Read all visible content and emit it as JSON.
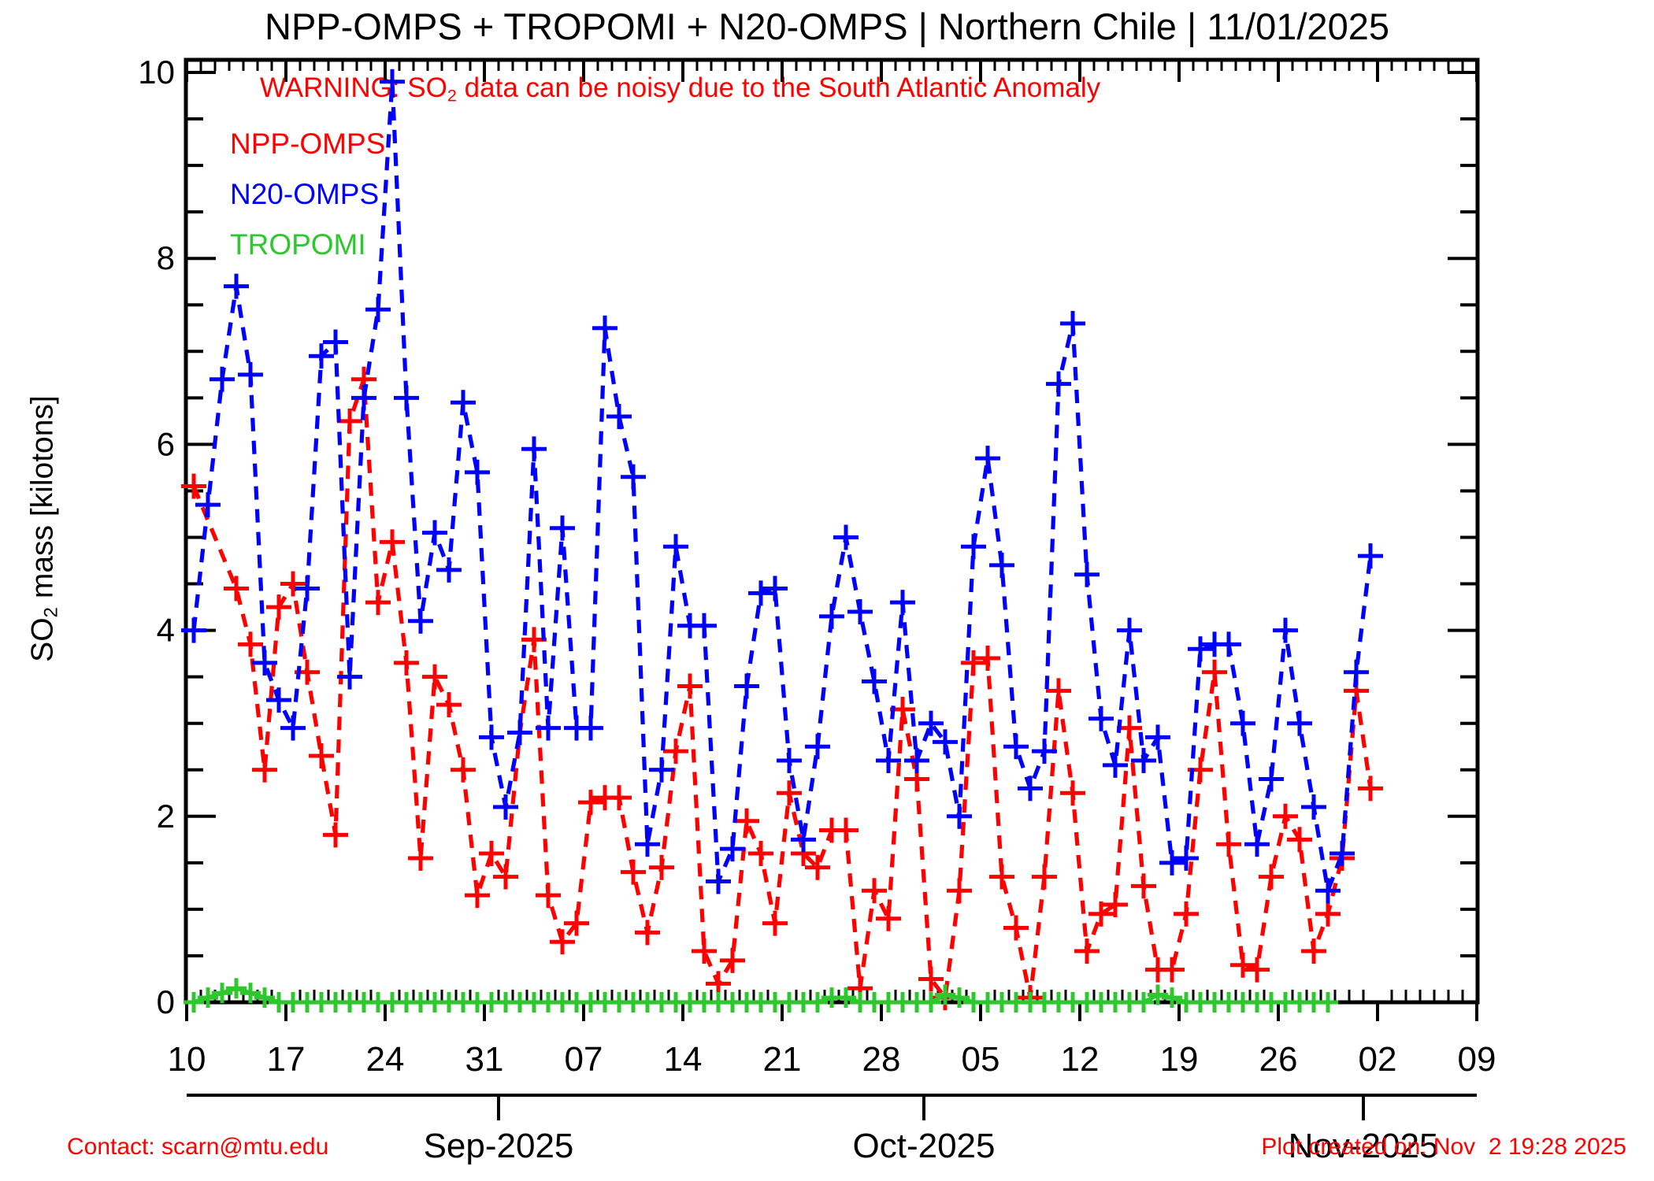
{
  "title": "NPP-OMPS + TROPOMI + N20-OMPS | Northern Chile | 11/01/2025",
  "warning": {
    "pre": "WARNING: SO",
    "sub": "2",
    "post": " data can be noisy due to the South Atlantic Anomaly"
  },
  "legend": {
    "npp_label": "NPP-OMPS",
    "n20_label": "N20-OMPS",
    "tropomi_label": "TROPOMI"
  },
  "y_axis_label": {
    "pre": "SO",
    "sub": "2",
    "post": " mass [kilotons]"
  },
  "footer": {
    "contact": "Contact: scarn@mtu.edu",
    "created": "Plot created on: Nov  2 19:28 2025"
  },
  "colors": {
    "red": "#ff0000",
    "blue": "#0000ff",
    "green": "#2dc82d",
    "black": "#000000"
  },
  "chart_data": {
    "type": "line",
    "title": "NPP-OMPS + TROPOMI + N20-OMPS | Northern Chile | 11/01/2025",
    "ylabel": "SO2 mass [kilotons]",
    "ylim": [
      0,
      10
    ],
    "y_tick_labels": [
      "0",
      "2",
      "4",
      "6",
      "8",
      "10"
    ],
    "y_major_step": 2,
    "y_minor_step": 0.5,
    "x_axis": {
      "start_date": "2025-08-10",
      "end_date": "2025-11-09",
      "week_tick_labels": [
        "10",
        "17",
        "24",
        "31",
        "07",
        "14",
        "21",
        "28",
        "05",
        "12",
        "19",
        "26",
        "02",
        "09"
      ],
      "month_ticks": [
        {
          "label": "Sep-2025",
          "date": "09-01"
        },
        {
          "label": "Oct-2025",
          "date": "10-01"
        },
        {
          "label": "Nov-2025",
          "date": "11-01"
        }
      ]
    },
    "legend_position": "upper-left-inside",
    "grid": false,
    "series": [
      {
        "name": "NPP-OMPS",
        "color": "#ff0000",
        "line_style": "dashed",
        "marker": "+",
        "points": [
          [
            "08-10",
            5.55
          ],
          [
            "08-13",
            4.45
          ],
          [
            "08-14",
            3.85
          ],
          [
            "08-15",
            2.5
          ],
          [
            "08-16",
            4.25
          ],
          [
            "08-17",
            4.5
          ],
          [
            "08-18",
            3.55
          ],
          [
            "08-19",
            2.65
          ],
          [
            "08-20",
            1.8
          ],
          [
            "08-21",
            6.25
          ],
          [
            "08-22",
            6.7
          ],
          [
            "08-23",
            4.3
          ],
          [
            "08-24",
            4.95
          ],
          [
            "08-25",
            3.65
          ],
          [
            "08-26",
            1.55
          ],
          [
            "08-27",
            3.5
          ],
          [
            "08-28",
            3.2
          ],
          [
            "08-29",
            2.5
          ],
          [
            "08-30",
            1.15
          ],
          [
            "08-31",
            1.6
          ],
          [
            "09-01",
            1.35
          ],
          [
            "09-02",
            2.9
          ],
          [
            "09-03",
            3.9
          ],
          [
            "09-04",
            1.15
          ],
          [
            "09-05",
            0.65
          ],
          [
            "09-06",
            0.85
          ],
          [
            "09-07",
            2.15
          ],
          [
            "09-08",
            2.2
          ],
          [
            "09-09",
            2.2
          ],
          [
            "09-10",
            1.4
          ],
          [
            "09-11",
            0.75
          ],
          [
            "09-12",
            1.45
          ],
          [
            "09-13",
            2.7
          ],
          [
            "09-14",
            3.4
          ],
          [
            "09-15",
            0.55
          ],
          [
            "09-16",
            0.2
          ],
          [
            "09-17",
            0.45
          ],
          [
            "09-18",
            1.95
          ],
          [
            "09-19",
            1.6
          ],
          [
            "09-20",
            0.85
          ],
          [
            "09-21",
            2.25
          ],
          [
            "09-22",
            1.6
          ],
          [
            "09-23",
            1.45
          ],
          [
            "09-24",
            1.85
          ],
          [
            "09-25",
            1.85
          ],
          [
            "09-26",
            0.15
          ],
          [
            "09-27",
            1.2
          ],
          [
            "09-28",
            0.9
          ],
          [
            "09-29",
            3.15
          ],
          [
            "09-30",
            2.4
          ],
          [
            "10-01",
            0.25
          ],
          [
            "10-02",
            0.05
          ],
          [
            "10-03",
            1.2
          ],
          [
            "10-04",
            3.65
          ],
          [
            "10-05",
            3.7
          ],
          [
            "10-06",
            1.35
          ],
          [
            "10-07",
            0.8
          ],
          [
            "10-08",
            0.05
          ],
          [
            "10-09",
            1.35
          ],
          [
            "10-10",
            3.35
          ],
          [
            "10-11",
            2.25
          ],
          [
            "10-12",
            0.55
          ],
          [
            "10-13",
            0.95
          ],
          [
            "10-14",
            1.05
          ],
          [
            "10-15",
            2.95
          ],
          [
            "10-16",
            1.25
          ],
          [
            "10-17",
            0.35
          ],
          [
            "10-18",
            0.35
          ],
          [
            "10-19",
            0.95
          ],
          [
            "10-20",
            2.5
          ],
          [
            "10-21",
            3.55
          ],
          [
            "10-22",
            1.7
          ],
          [
            "10-23",
            0.4
          ],
          [
            "10-24",
            0.35
          ],
          [
            "10-25",
            1.35
          ],
          [
            "10-26",
            2.0
          ],
          [
            "10-27",
            1.75
          ],
          [
            "10-28",
            0.55
          ],
          [
            "10-29",
            0.95
          ],
          [
            "10-30",
            1.55
          ],
          [
            "10-31",
            3.35
          ],
          [
            "11-01",
            2.3
          ]
        ]
      },
      {
        "name": "N20-OMPS",
        "color": "#0000ff",
        "line_style": "dashed",
        "marker": "+",
        "points": [
          [
            "08-10",
            4.0
          ],
          [
            "08-11",
            5.35
          ],
          [
            "08-12",
            6.7
          ],
          [
            "08-13",
            7.7
          ],
          [
            "08-14",
            6.75
          ],
          [
            "08-15",
            3.65
          ],
          [
            "08-16",
            3.25
          ],
          [
            "08-17",
            2.95
          ],
          [
            "08-18",
            4.45
          ],
          [
            "08-19",
            6.95
          ],
          [
            "08-20",
            7.1
          ],
          [
            "08-21",
            3.5
          ],
          [
            "08-22",
            6.5
          ],
          [
            "08-23",
            7.45
          ],
          [
            "08-24",
            9.9
          ],
          [
            "08-25",
            6.5
          ],
          [
            "08-26",
            4.1
          ],
          [
            "08-27",
            5.05
          ],
          [
            "08-28",
            4.65
          ],
          [
            "08-29",
            6.45
          ],
          [
            "08-30",
            5.7
          ],
          [
            "08-31",
            2.85
          ],
          [
            "09-01",
            2.1
          ],
          [
            "09-02",
            2.9
          ],
          [
            "09-03",
            5.95
          ],
          [
            "09-04",
            2.95
          ],
          [
            "09-05",
            5.1
          ],
          [
            "09-06",
            2.95
          ],
          [
            "09-07",
            2.95
          ],
          [
            "09-08",
            7.25
          ],
          [
            "09-09",
            6.3
          ],
          [
            "09-10",
            5.65
          ],
          [
            "09-11",
            1.7
          ],
          [
            "09-12",
            2.5
          ],
          [
            "09-13",
            4.9
          ],
          [
            "09-14",
            4.05
          ],
          [
            "09-15",
            4.05
          ],
          [
            "09-16",
            1.3
          ],
          [
            "09-17",
            1.65
          ],
          [
            "09-18",
            3.4
          ],
          [
            "09-19",
            4.4
          ],
          [
            "09-20",
            4.45
          ],
          [
            "09-21",
            2.6
          ],
          [
            "09-22",
            1.75
          ],
          [
            "09-23",
            2.75
          ],
          [
            "09-24",
            4.15
          ],
          [
            "09-25",
            5.0
          ],
          [
            "09-26",
            4.2
          ],
          [
            "09-27",
            3.45
          ],
          [
            "09-28",
            2.6
          ],
          [
            "09-29",
            4.3
          ],
          [
            "09-30",
            2.6
          ],
          [
            "10-01",
            3.0
          ],
          [
            "10-02",
            2.8
          ],
          [
            "10-03",
            2.0
          ],
          [
            "10-04",
            4.9
          ],
          [
            "10-05",
            5.85
          ],
          [
            "10-06",
            4.7
          ],
          [
            "10-07",
            2.75
          ],
          [
            "10-08",
            2.3
          ],
          [
            "10-09",
            2.7
          ],
          [
            "10-10",
            6.65
          ],
          [
            "10-11",
            7.3
          ],
          [
            "10-12",
            4.6
          ],
          [
            "10-13",
            3.05
          ],
          [
            "10-14",
            2.55
          ],
          [
            "10-15",
            4.0
          ],
          [
            "10-16",
            2.6
          ],
          [
            "10-17",
            2.85
          ],
          [
            "10-18",
            1.5
          ],
          [
            "10-19",
            1.55
          ],
          [
            "10-20",
            3.8
          ],
          [
            "10-21",
            3.85
          ],
          [
            "10-22",
            3.85
          ],
          [
            "10-23",
            3.0
          ],
          [
            "10-24",
            1.7
          ],
          [
            "10-25",
            2.4
          ],
          [
            "10-26",
            4.0
          ],
          [
            "10-27",
            3.0
          ],
          [
            "10-28",
            2.1
          ],
          [
            "10-29",
            1.2
          ],
          [
            "10-30",
            1.6
          ],
          [
            "10-31",
            3.55
          ],
          [
            "11-01",
            4.8
          ]
        ]
      },
      {
        "name": "TROPOMI",
        "color": "#2dc82d",
        "line_style": "solid",
        "marker": "+",
        "points": [
          [
            "08-10",
            0
          ],
          [
            "08-11",
            0.05
          ],
          [
            "08-12",
            0.1
          ],
          [
            "08-13",
            0.15
          ],
          [
            "08-14",
            0.1
          ],
          [
            "08-15",
            0.05
          ],
          [
            "08-16",
            0
          ],
          [
            "08-17",
            0
          ],
          [
            "08-18",
            0
          ],
          [
            "08-19",
            0
          ],
          [
            "08-20",
            0
          ],
          [
            "08-21",
            0
          ],
          [
            "08-22",
            0
          ],
          [
            "08-23",
            0
          ],
          [
            "08-24",
            0
          ],
          [
            "08-25",
            0
          ],
          [
            "08-26",
            0
          ],
          [
            "08-27",
            0
          ],
          [
            "08-28",
            0
          ],
          [
            "08-29",
            0
          ],
          [
            "08-30",
            0
          ],
          [
            "08-31",
            0
          ],
          [
            "09-01",
            0
          ],
          [
            "09-02",
            0
          ],
          [
            "09-03",
            0
          ],
          [
            "09-04",
            0
          ],
          [
            "09-05",
            0
          ],
          [
            "09-06",
            0
          ],
          [
            "09-07",
            0
          ],
          [
            "09-08",
            0
          ],
          [
            "09-09",
            0
          ],
          [
            "09-10",
            0
          ],
          [
            "09-11",
            0
          ],
          [
            "09-12",
            0
          ],
          [
            "09-13",
            0
          ],
          [
            "09-14",
            0
          ],
          [
            "09-15",
            0
          ],
          [
            "09-16",
            0
          ],
          [
            "09-17",
            0
          ],
          [
            "09-18",
            0
          ],
          [
            "09-19",
            0
          ],
          [
            "09-20",
            0
          ],
          [
            "09-21",
            0
          ],
          [
            "09-22",
            0
          ],
          [
            "09-23",
            0
          ],
          [
            "09-24",
            0.05
          ],
          [
            "09-25",
            0.05
          ],
          [
            "09-26",
            0
          ],
          [
            "09-27",
            0
          ],
          [
            "09-28",
            0
          ],
          [
            "09-29",
            0
          ],
          [
            "09-30",
            0
          ],
          [
            "10-01",
            0
          ],
          [
            "10-02",
            0.08
          ],
          [
            "10-03",
            0.05
          ],
          [
            "10-04",
            0
          ],
          [
            "10-05",
            0
          ],
          [
            "10-06",
            0
          ],
          [
            "10-07",
            0
          ],
          [
            "10-08",
            0
          ],
          [
            "10-09",
            0
          ],
          [
            "10-10",
            0
          ],
          [
            "10-11",
            0
          ],
          [
            "10-12",
            0
          ],
          [
            "10-13",
            0
          ],
          [
            "10-14",
            0
          ],
          [
            "10-15",
            0
          ],
          [
            "10-16",
            0
          ],
          [
            "10-17",
            0.08
          ],
          [
            "10-18",
            0.05
          ],
          [
            "10-19",
            0
          ],
          [
            "10-20",
            0
          ],
          [
            "10-21",
            0
          ],
          [
            "10-22",
            0
          ],
          [
            "10-23",
            0
          ],
          [
            "10-24",
            0
          ],
          [
            "10-25",
            0
          ],
          [
            "10-26",
            0
          ],
          [
            "10-27",
            0
          ],
          [
            "10-28",
            0
          ],
          [
            "10-29",
            0
          ]
        ]
      }
    ]
  }
}
